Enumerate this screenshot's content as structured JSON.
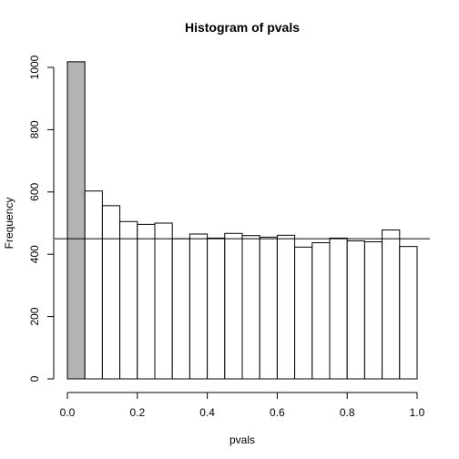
{
  "chart_data": {
    "type": "bar",
    "title": "Histogram of pvals",
    "xlabel": "pvals",
    "ylabel": "Frequency",
    "xlim": [
      0.0,
      1.0
    ],
    "ylim": [
      0,
      1000
    ],
    "x_ticks": [
      0.0,
      0.2,
      0.4,
      0.6,
      0.8,
      1.0
    ],
    "x_tick_labels": [
      "0.0",
      "0.2",
      "0.4",
      "0.6",
      "0.8",
      "1.0"
    ],
    "y_ticks": [
      0,
      200,
      400,
      600,
      800,
      1000
    ],
    "y_tick_labels": [
      "0",
      "200",
      "400",
      "600",
      "800",
      "1000"
    ],
    "bin_width": 0.05,
    "bin_starts": [
      0.0,
      0.05,
      0.1,
      0.15,
      0.2,
      0.25,
      0.3,
      0.35,
      0.4,
      0.45,
      0.5,
      0.55,
      0.6,
      0.65,
      0.7,
      0.75,
      0.8,
      0.85,
      0.9,
      0.95
    ],
    "values": [
      1018,
      603,
      556,
      505,
      496,
      500,
      450,
      465,
      452,
      467,
      460,
      455,
      461,
      423,
      437,
      452,
      443,
      440,
      478,
      425
    ],
    "highlighted_bins": [
      0
    ],
    "highlight_color": "#b3b3b3",
    "bar_color": "#ffffff",
    "reference_line": {
      "orientation": "horizontal",
      "y": 450
    },
    "grid": false,
    "legend": "none"
  }
}
